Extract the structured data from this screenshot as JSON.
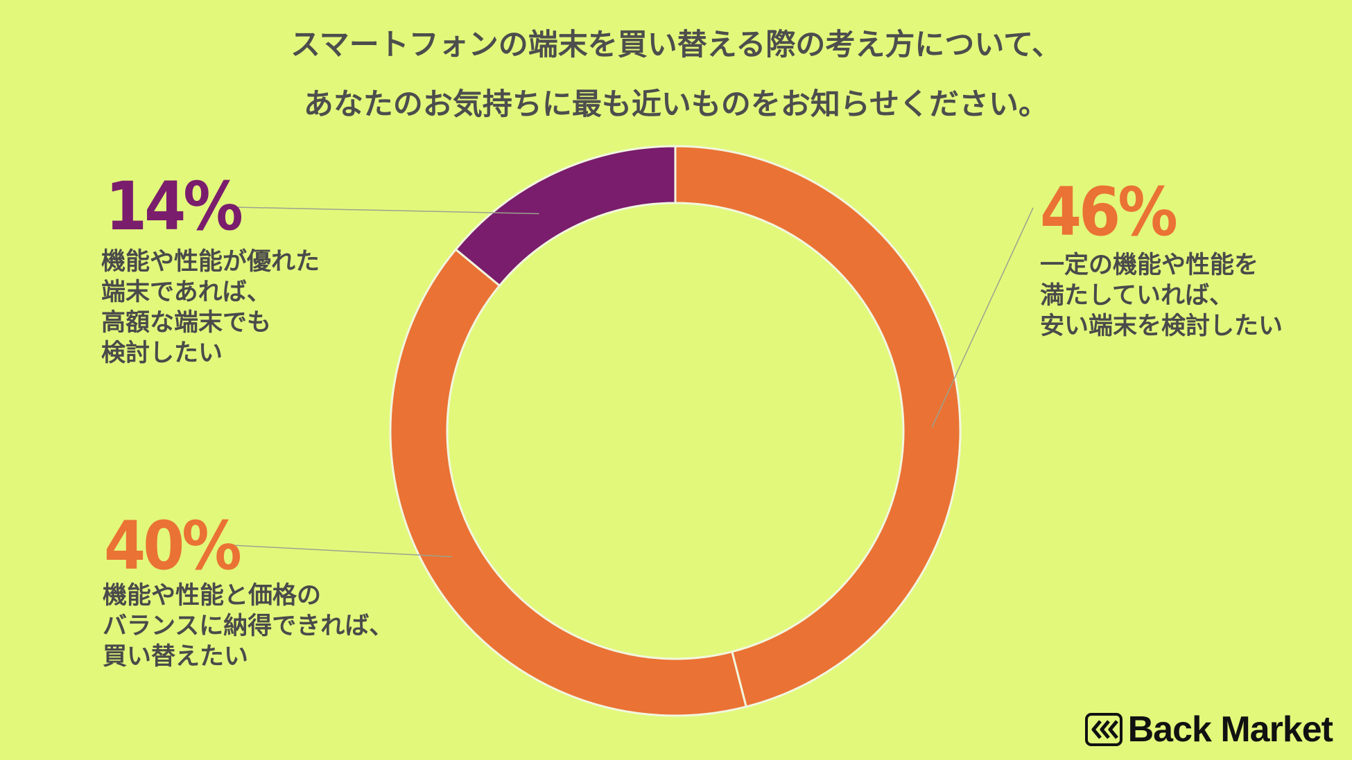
{
  "title_lines": [
    "スマートフォンの端末を買い替える際の考え方について、",
    "あなたのお気持ちに最も近いものをお知らせください。"
  ],
  "chart_data": {
    "type": "pie",
    "title": "スマートフォンの端末を買い替える際の考え方について、あなたのお気持ちに最も近いものをお知らせください。",
    "slices": [
      {
        "value": 46,
        "label": "46%",
        "color": "#ea7234",
        "desc": [
          "一定の機能や性能を",
          "満たしていれば、",
          "安い端末を検討したい"
        ]
      },
      {
        "value": 40,
        "label": "40%",
        "color": "#ea7234",
        "desc": [
          "機能や性能と価格の",
          "バランスに納得できれば、",
          "買い替えたい"
        ]
      },
      {
        "value": 14,
        "label": "14%",
        "color": "#7a1d6c",
        "desc": [
          "機能や性能が優れた",
          "端末であれば、",
          "高額な端末でも",
          "検討したい"
        ]
      }
    ]
  },
  "brand": {
    "name": "Back Market",
    "icon": "back-market-chevrons-icon"
  }
}
